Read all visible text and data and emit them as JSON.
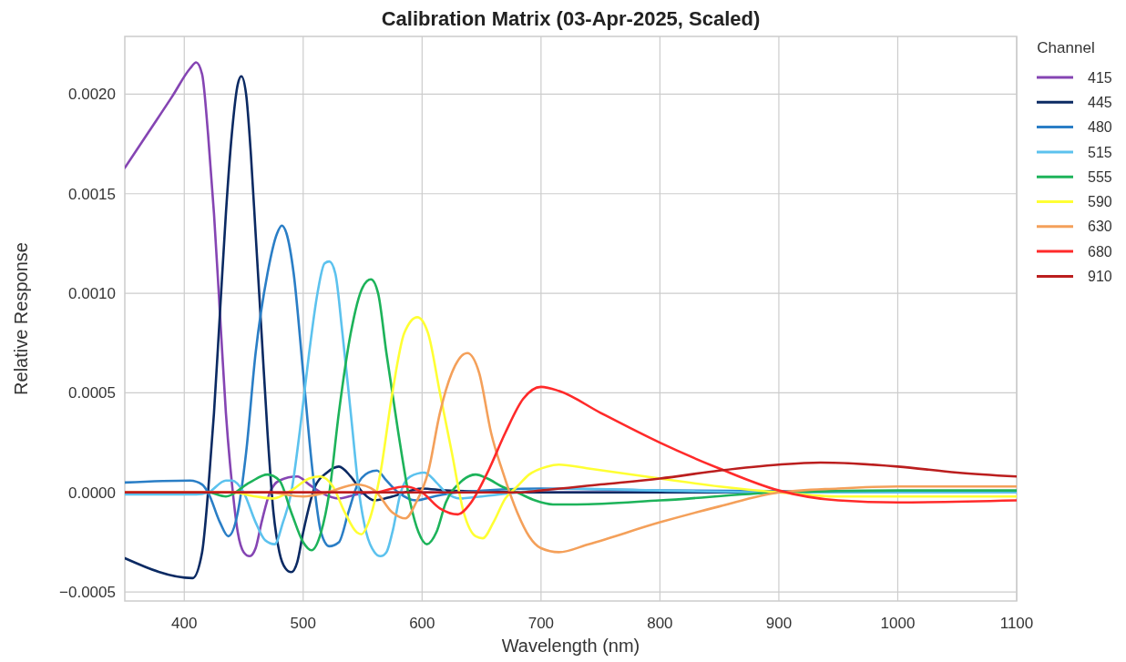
{
  "chart_data": {
    "type": "line",
    "title": "Calibration Matrix (03-Apr-2025, Scaled)",
    "xlabel": "Wavelength (nm)",
    "ylabel": "Relative Response",
    "legend_title": "Channel",
    "legend": "right",
    "grid": true,
    "line_style": "solid",
    "xlim": [
      350,
      1100
    ],
    "ylim": [
      -0.000545,
      0.00229
    ],
    "xticks": [
      400,
      500,
      600,
      700,
      800,
      900,
      1000,
      1100
    ],
    "yticks": [
      {
        "value": -0.0005,
        "label": "−0.0005"
      },
      {
        "value": 0,
        "label": "0.0000"
      },
      {
        "value": 0.0005,
        "label": "0.0005"
      },
      {
        "value": 0.001,
        "label": "0.0010"
      },
      {
        "value": 0.0015,
        "label": "0.0015"
      },
      {
        "value": 0.002,
        "label": "0.0020"
      }
    ],
    "series": [
      {
        "name": "415",
        "color": "#8545b3",
        "x": [
          350,
          370,
          390,
          405,
          410,
          415,
          420,
          425,
          430,
          435,
          440,
          445,
          450,
          455,
          460,
          465,
          472,
          480,
          495,
          505,
          515,
          530,
          545,
          560,
          600,
          700,
          1100
        ],
        "values": [
          0.00163,
          0.00181,
          0.00199,
          0.00213,
          0.00216,
          0.0021,
          0.0018,
          0.0014,
          0.0009,
          0.0004,
          5e-05,
          -0.0002,
          -0.0003,
          -0.00032,
          -0.00028,
          -0.00015,
          0,
          6e-05,
          8e-05,
          4e-05,
          0,
          -3e-05,
          -1e-05,
          0,
          0,
          0,
          0
        ]
      },
      {
        "name": "445",
        "color": "#0b2a63",
        "x": [
          350,
          407,
          415,
          420,
          425,
          430,
          435,
          440,
          445,
          448,
          452,
          456,
          460,
          465,
          470,
          475,
          480,
          485,
          490,
          495,
          500,
          510,
          520,
          530,
          540,
          550,
          560,
          575,
          600,
          620,
          700,
          1100
        ],
        "values": [
          -0.00033,
          -0.00043,
          -0.0003,
          0,
          0.0004,
          0.0009,
          0.0014,
          0.0018,
          0.00205,
          0.00209,
          0.002,
          0.0017,
          0.0013,
          0.0008,
          0.0003,
          -0.0001,
          -0.0003,
          -0.00038,
          -0.0004,
          -0.00035,
          -0.0002,
          3e-05,
          0.0001,
          0.00013,
          8e-05,
          0,
          -4e-05,
          -2e-05,
          2e-05,
          1e-05,
          0,
          0
        ]
      },
      {
        "name": "480",
        "color": "#2a7ec6",
        "x": [
          350,
          405,
          415,
          420,
          430,
          437,
          445,
          452,
          460,
          470,
          478,
          482,
          486,
          492,
          500,
          508,
          515,
          522,
          530,
          538,
          545,
          555,
          562,
          570,
          580,
          595,
          610,
          630,
          700,
          800,
          1100
        ],
        "values": [
          5e-05,
          6e-05,
          4e-05,
          0,
          -0.00015,
          -0.00022,
          -0.0001,
          0.0002,
          0.0007,
          0.0011,
          0.0013,
          0.00134,
          0.0013,
          0.0011,
          0.0006,
          0.0001,
          -0.0002,
          -0.00027,
          -0.00025,
          -0.0001,
          3e-05,
          0.0001,
          0.00011,
          6e-05,
          0,
          -4e-05,
          -2e-05,
          0,
          2e-05,
          1e-05,
          0
        ]
      },
      {
        "name": "515",
        "color": "#5cc2ee",
        "x": [
          350,
          410,
          420,
          435,
          440,
          450,
          460,
          468,
          476,
          483,
          490,
          497,
          505,
          512,
          518,
          522,
          527,
          533,
          540,
          547,
          553,
          560,
          565,
          570,
          575,
          582,
          590,
          602,
          612,
          620,
          632,
          650,
          680,
          720,
          800,
          900,
          1100
        ],
        "values": [
          -1e-05,
          -1e-05,
          0,
          6e-05,
          6e-05,
          0,
          -0.00015,
          -0.00024,
          -0.00026,
          -0.00015,
          0,
          0.0003,
          0.0007,
          0.001,
          0.00115,
          0.00116,
          0.0011,
          0.0008,
          0.0004,
          0,
          -0.0002,
          -0.0003,
          -0.00032,
          -0.0003,
          -0.0002,
          0,
          8e-05,
          0.0001,
          5e-05,
          0,
          -3e-05,
          -2e-05,
          0,
          2e-05,
          1e-05,
          0,
          0
        ]
      },
      {
        "name": "555",
        "color": "#1db35a",
        "x": [
          350,
          420,
          435,
          455,
          470,
          480,
          490,
          500,
          507,
          515,
          522,
          530,
          540,
          550,
          557,
          563,
          570,
          580,
          590,
          597,
          604,
          612,
          620,
          632,
          645,
          655,
          667,
          680,
          695,
          710,
          730,
          800,
          900,
          1000,
          1100
        ],
        "values": [
          0,
          0,
          -2e-05,
          5e-05,
          9e-05,
          6e-05,
          -0.0001,
          -0.00025,
          -0.00029,
          -0.0002,
          0,
          0.0004,
          0.0008,
          0.00103,
          0.00107,
          0.001,
          0.0007,
          0.0003,
          -5e-05,
          -0.0002,
          -0.00026,
          -0.0002,
          -5e-05,
          5e-05,
          9e-05,
          7e-05,
          3e-05,
          0,
          -4e-05,
          -6e-05,
          -6e-05,
          -4e-05,
          0,
          1e-05,
          1e-05
        ]
      },
      {
        "name": "590",
        "color": "#ffff33",
        "x": [
          350,
          440,
          460,
          475,
          490,
          505,
          514,
          525,
          535,
          545,
          549,
          555,
          565,
          575,
          585,
          596,
          605,
          615,
          625,
          635,
          645,
          651,
          660,
          670,
          680,
          690,
          705,
          715,
          740,
          800,
          850,
          900,
          950,
          1000,
          1100
        ],
        "values": [
          0,
          0,
          -2e-05,
          -3e-05,
          1e-05,
          7e-05,
          8e-05,
          3e-05,
          -0.0001,
          -0.0002,
          -0.00021,
          -0.00015,
          0.0001,
          0.0005,
          0.0008,
          0.00088,
          0.0008,
          0.0005,
          0.0002,
          -0.0001,
          -0.00022,
          -0.00023,
          -0.00015,
          -3e-05,
          3e-05,
          9e-05,
          0.00013,
          0.00014,
          0.00012,
          7e-05,
          3e-05,
          0,
          -2e-05,
          -2e-05,
          -2e-05
        ]
      },
      {
        "name": "630",
        "color": "#f4a05a",
        "x": [
          350,
          470,
          500,
          520,
          545,
          560,
          575,
          586,
          595,
          605,
          615,
          625,
          638,
          648,
          658,
          668,
          680,
          690,
          700,
          715,
          740,
          800,
          850,
          900,
          950,
          1000,
          1100
        ],
        "values": [
          0,
          0,
          -2e-05,
          0,
          4e-05,
          1e-05,
          -0.0001,
          -0.00013,
          -5e-05,
          0.0001,
          0.0004,
          0.0006,
          0.0007,
          0.0006,
          0.0003,
          0.0001,
          -0.0001,
          -0.00022,
          -0.00028,
          -0.0003,
          -0.00026,
          -0.00015,
          -7e-05,
          0,
          2e-05,
          3e-05,
          3e-05
        ]
      },
      {
        "name": "680",
        "color": "#ff2a2a",
        "x": [
          350,
          560,
          575,
          586,
          600,
          615,
          630,
          640,
          655,
          670,
          685,
          700,
          715,
          750,
          800,
          850,
          900,
          950,
          1000,
          1100
        ],
        "values": [
          0,
          0,
          2e-05,
          3e-05,
          0,
          -8e-05,
          -0.00011,
          -6e-05,
          0.0001,
          0.0003,
          0.00047,
          0.00053,
          0.00051,
          0.0004,
          0.00025,
          0.00012,
          1e-05,
          -4e-05,
          -5e-05,
          -4e-05
        ]
      },
      {
        "name": "910",
        "color": "#bb1e1e",
        "x": [
          350,
          680,
          700,
          750,
          800,
          850,
          900,
          935,
          1000,
          1050,
          1100
        ],
        "values": [
          0,
          0,
          1e-05,
          4e-05,
          7e-05,
          0.00011,
          0.00014,
          0.00015,
          0.00013,
          0.0001,
          8e-05
        ]
      }
    ]
  }
}
